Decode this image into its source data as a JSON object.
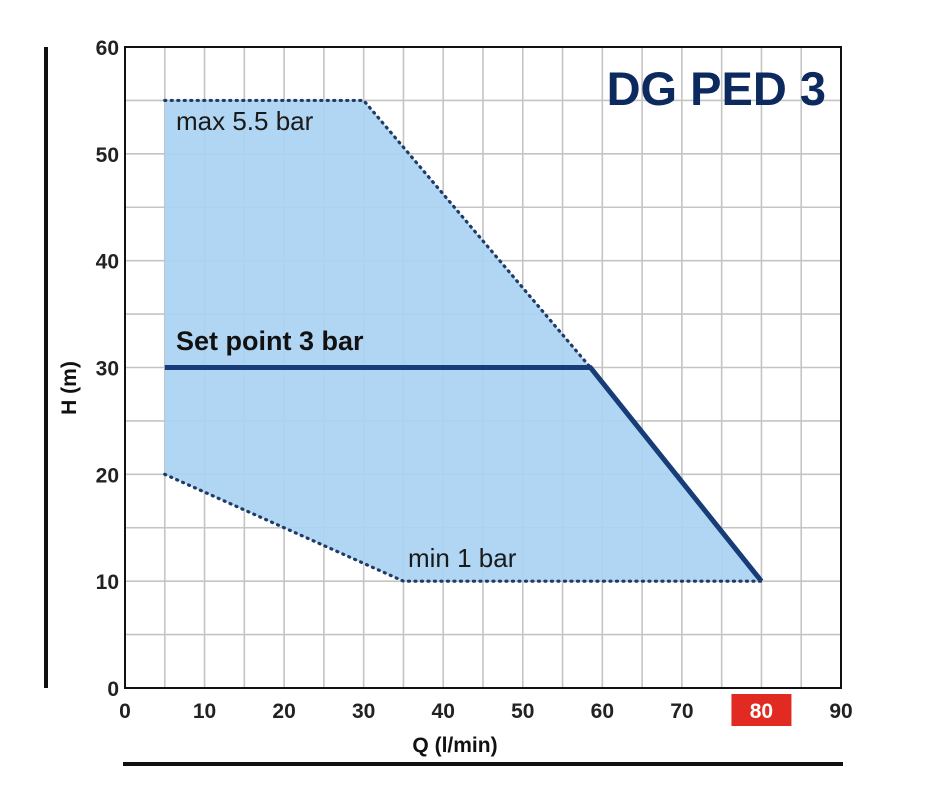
{
  "chart_data": {
    "type": "area",
    "title": "DG PED 3",
    "xlabel": "Q (l/min)",
    "ylabel": "H (m)",
    "xlim": [
      0,
      90
    ],
    "ylim": [
      0,
      60
    ],
    "xticks": [
      0,
      10,
      20,
      30,
      40,
      50,
      60,
      70,
      80,
      90
    ],
    "yticks": [
      0,
      10,
      20,
      30,
      40,
      50,
      60
    ],
    "highlighted_xtick": 80,
    "grid": true,
    "operating_area": {
      "x": [
        5,
        30,
        58.5,
        80,
        35,
        5
      ],
      "y": [
        55,
        55,
        30,
        10,
        10,
        20
      ]
    },
    "boundaries": [
      {
        "label": "max 5.5 bar",
        "x": [
          5,
          30,
          58.5
        ],
        "y": [
          55,
          55,
          30
        ]
      },
      {
        "label": "min 1 bar",
        "x": [
          5,
          35,
          80
        ],
        "y": [
          20,
          10,
          10
        ]
      }
    ],
    "set_point": {
      "label": "Set point 3 bar",
      "x": [
        5,
        58.5,
        80
      ],
      "y": [
        30,
        30,
        10
      ]
    },
    "colors": {
      "area_fill": "#a9d3f2",
      "set_point_line": "#163d78",
      "boundary_line": "#1f3b66",
      "grid_line": "#c4c4c4",
      "title": "#0d2a5e",
      "highlight_tick_bg": "#e02a22"
    }
  }
}
